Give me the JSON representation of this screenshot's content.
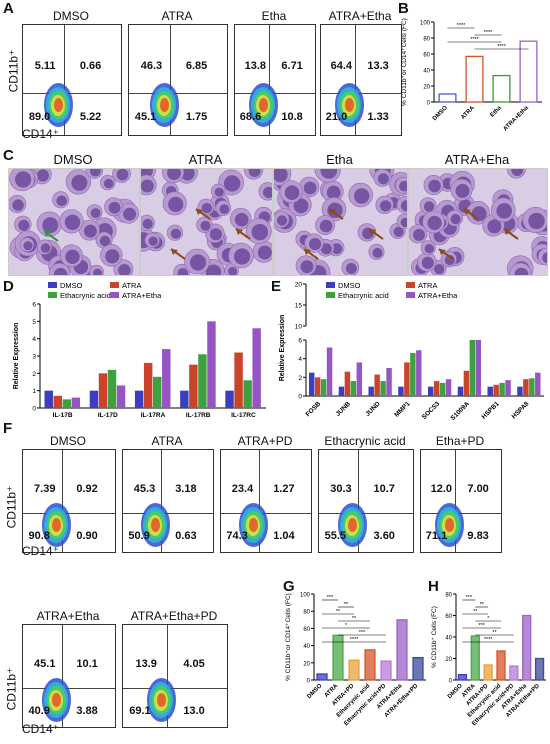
{
  "panels": {
    "A": "A",
    "B": "B",
    "C": "C",
    "D": "D",
    "E": "E",
    "F": "F",
    "G": "G",
    "H": "H"
  },
  "axes": {
    "cd11b": "CD11b⁺",
    "cd14": "CD14⁺"
  },
  "panelA": [
    {
      "title": "DMSO",
      "q": [
        "5.11",
        "0.66",
        "89.0",
        "5.22"
      ]
    },
    {
      "title": "ATRA",
      "q": [
        "46.3",
        "6.85",
        "45.1",
        "1.75"
      ]
    },
    {
      "title": "Etha",
      "q": [
        "13.8",
        "6.71",
        "68.6",
        "10.8"
      ]
    },
    {
      "title": "ATRA+Etha",
      "q": [
        "64.4",
        "13.3",
        "21.0",
        "1.33"
      ]
    }
  ],
  "panelF": [
    {
      "title": "DMSO",
      "q": [
        "7.39",
        "0.92",
        "90.8",
        "0.90"
      ]
    },
    {
      "title": "ATRA",
      "q": [
        "45.3",
        "3.18",
        "50.9",
        "0.63"
      ]
    },
    {
      "title": "ATRA+PD",
      "q": [
        "23.4",
        "1.27",
        "74.3",
        "1.04"
      ]
    },
    {
      "title": "Ethacrynic acid",
      "q": [
        "30.3",
        "10.7",
        "55.5",
        "3.60"
      ]
    },
    {
      "title": "Etha+PD",
      "q": [
        "12.0",
        "7.00",
        "71.1",
        "9.83"
      ]
    },
    {
      "title": "ATRA+Etha",
      "q": [
        "45.1",
        "10.1",
        "40.9",
        "3.88"
      ]
    },
    {
      "title": "ATRA+Etha+PD",
      "q": [
        "13.9",
        "4.05",
        "69.1",
        "13.0"
      ]
    }
  ],
  "panelC": [
    "DMSO",
    "ATRA",
    "Etha",
    "ATRA+Eha"
  ],
  "chart_data": [
    {
      "id": "B",
      "type": "bar",
      "ylabel": "% CD11b⁺or CD14⁺Cells (FC)",
      "categories": [
        "DMSO",
        "ATRA",
        "Etha",
        "ATRA+Etha"
      ],
      "values": [
        10,
        57,
        33,
        76
      ],
      "ylim": [
        0,
        100
      ],
      "yticks": [
        "0",
        "20",
        "40",
        "60",
        "80",
        "100"
      ],
      "colors": [
        "#4a5fbf",
        "#d4542a",
        "#3a9a3a",
        "#9b63c8"
      ],
      "sig": [
        "****",
        "****",
        "****",
        "****"
      ]
    },
    {
      "id": "D",
      "type": "bar",
      "ylabel": "Relative Expression",
      "categories": [
        "IL-17B",
        "IL-17D",
        "IL-17RA",
        "IL-17RB",
        "IL-17RC"
      ],
      "series": [
        {
          "name": "DMSO",
          "values": [
            1.0,
            1.0,
            1.0,
            1.0,
            1.0
          ]
        },
        {
          "name": "ATRA",
          "values": [
            0.7,
            2.0,
            2.6,
            2.5,
            3.2
          ]
        },
        {
          "name": "Ethacrynic acid",
          "values": [
            0.5,
            2.2,
            1.8,
            3.1,
            1.6
          ]
        },
        {
          "name": "ATRA+Etha",
          "values": [
            0.6,
            1.3,
            3.4,
            5.0,
            4.6
          ]
        }
      ],
      "ylim": [
        0,
        6
      ],
      "yticks": [
        "0",
        "1",
        "2",
        "3",
        "4",
        "5",
        "6"
      ],
      "colors": [
        "#3b3fbf",
        "#c9442a",
        "#3fa03f",
        "#9556c4"
      ]
    },
    {
      "id": "E",
      "type": "bar",
      "ylabel": "Relative Expression",
      "categories": [
        "FOSB",
        "JUNB",
        "JUND",
        "MMP1",
        "SOCS3",
        "S1009A",
        "HSPB1",
        "HSPA8"
      ],
      "series": [
        {
          "name": "DMSO",
          "values": [
            2.5,
            1.0,
            1.0,
            1.0,
            1.0,
            1.0,
            1.0,
            1.0
          ]
        },
        {
          "name": "ATRA",
          "values": [
            2.0,
            2.6,
            2.3,
            3.6,
            1.6,
            2.7,
            1.2,
            1.8
          ]
        },
        {
          "name": "Ethacrynic acid",
          "values": [
            1.8,
            1.6,
            1.6,
            4.6,
            1.4,
            6.0,
            1.4,
            1.9
          ]
        },
        {
          "name": "ATRA+Etha",
          "values": [
            5.2,
            3.6,
            3.0,
            4.9,
            1.8,
            6.0,
            1.7,
            2.5
          ]
        }
      ],
      "break": {
        "low": 6,
        "high_ticks": [
          "10",
          "15",
          "20"
        ],
        "s1009a_high": [
          2.7,
          11,
          13
        ]
      },
      "yticks_low": [
        "0",
        "2",
        "4",
        "6"
      ],
      "colors": [
        "#3b3fbf",
        "#c9442a",
        "#3fa03f",
        "#9556c4"
      ]
    },
    {
      "id": "G",
      "type": "bar",
      "ylabel": "% CD11b⁺or CD14⁺Cells (FC)",
      "categories": [
        "DMSO",
        "ATRA",
        "ATRA+PD",
        "Ethacrynic acid",
        "Ethacrynic acid+PD",
        "ATRA+Etha",
        "ATRA+Etha+PD"
      ],
      "values": [
        7,
        52,
        23,
        35,
        22,
        70,
        26
      ],
      "ylim": [
        0,
        100
      ],
      "yticks": [
        "0",
        "20",
        "40",
        "60",
        "80",
        "100"
      ],
      "colors": [
        "#3b3fbf",
        "#4aa84a",
        "#e8a23a",
        "#d4542a",
        "#b77ad6",
        "#9b63c8",
        "#3b4a9a"
      ],
      "sig": [
        "***",
        "**",
        "**",
        "**",
        "*",
        "***",
        "****"
      ]
    },
    {
      "id": "H",
      "type": "bar",
      "ylabel": "% CD11b⁺ Cells (FC)",
      "categories": [
        "DMSO",
        "ATRA",
        "ATRA+PD",
        "Ethacrynic acid",
        "Ethacrynic acid+PD",
        "ATRA+Etha",
        "ATRA+Etha+PD"
      ],
      "values": [
        5,
        41,
        14,
        27,
        13,
        60,
        20
      ],
      "ylim": [
        0,
        80
      ],
      "yticks": [
        "0",
        "20",
        "40",
        "60",
        "80"
      ],
      "colors": [
        "#3b3fbf",
        "#4aa84a",
        "#e8a23a",
        "#d4542a",
        "#b77ad6",
        "#9b63c8",
        "#3b4a9a"
      ],
      "sig": [
        "***",
        "**",
        "**",
        "*",
        "***",
        "**",
        "****"
      ]
    }
  ]
}
